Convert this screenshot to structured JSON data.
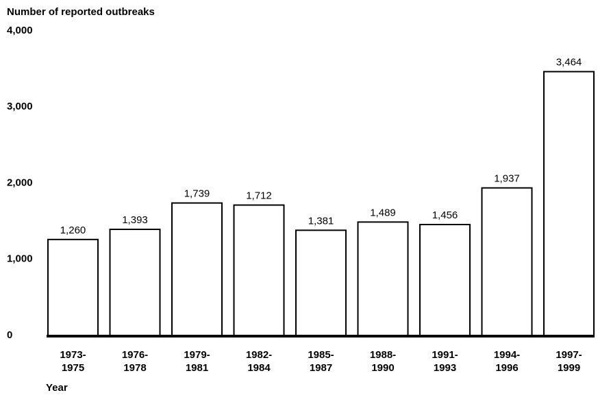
{
  "chart_data": {
    "type": "bar",
    "title": "Number of reported outbreaks",
    "x_label": "Year",
    "categories": [
      "1973-\n1975",
      "1976-\n1978",
      "1979-\n1981",
      "1982-\n1984",
      "1985-\n1987",
      "1988-\n1990",
      "1991-\n1993",
      "1994-\n1996",
      "1997-\n1999"
    ],
    "values": [
      1260,
      1393,
      1739,
      1712,
      1381,
      1489,
      1456,
      1937,
      3464
    ],
    "value_labels": [
      "1,260",
      "1,393",
      "1,739",
      "1,712",
      "1,381",
      "1,489",
      "1,456",
      "1,937",
      "3,464"
    ],
    "color": "#ffffff",
    "ylim": [
      0,
      4000
    ],
    "yticks": [
      0,
      {
        "value": 1000,
        "label": "1,000"
      },
      {
        "value": 2000,
        "label": "2,000"
      },
      {
        "value": 3000,
        "label": "3,000"
      },
      {
        "value": 4000,
        "label": "4,000"
      }
    ],
    "grid": false
  }
}
